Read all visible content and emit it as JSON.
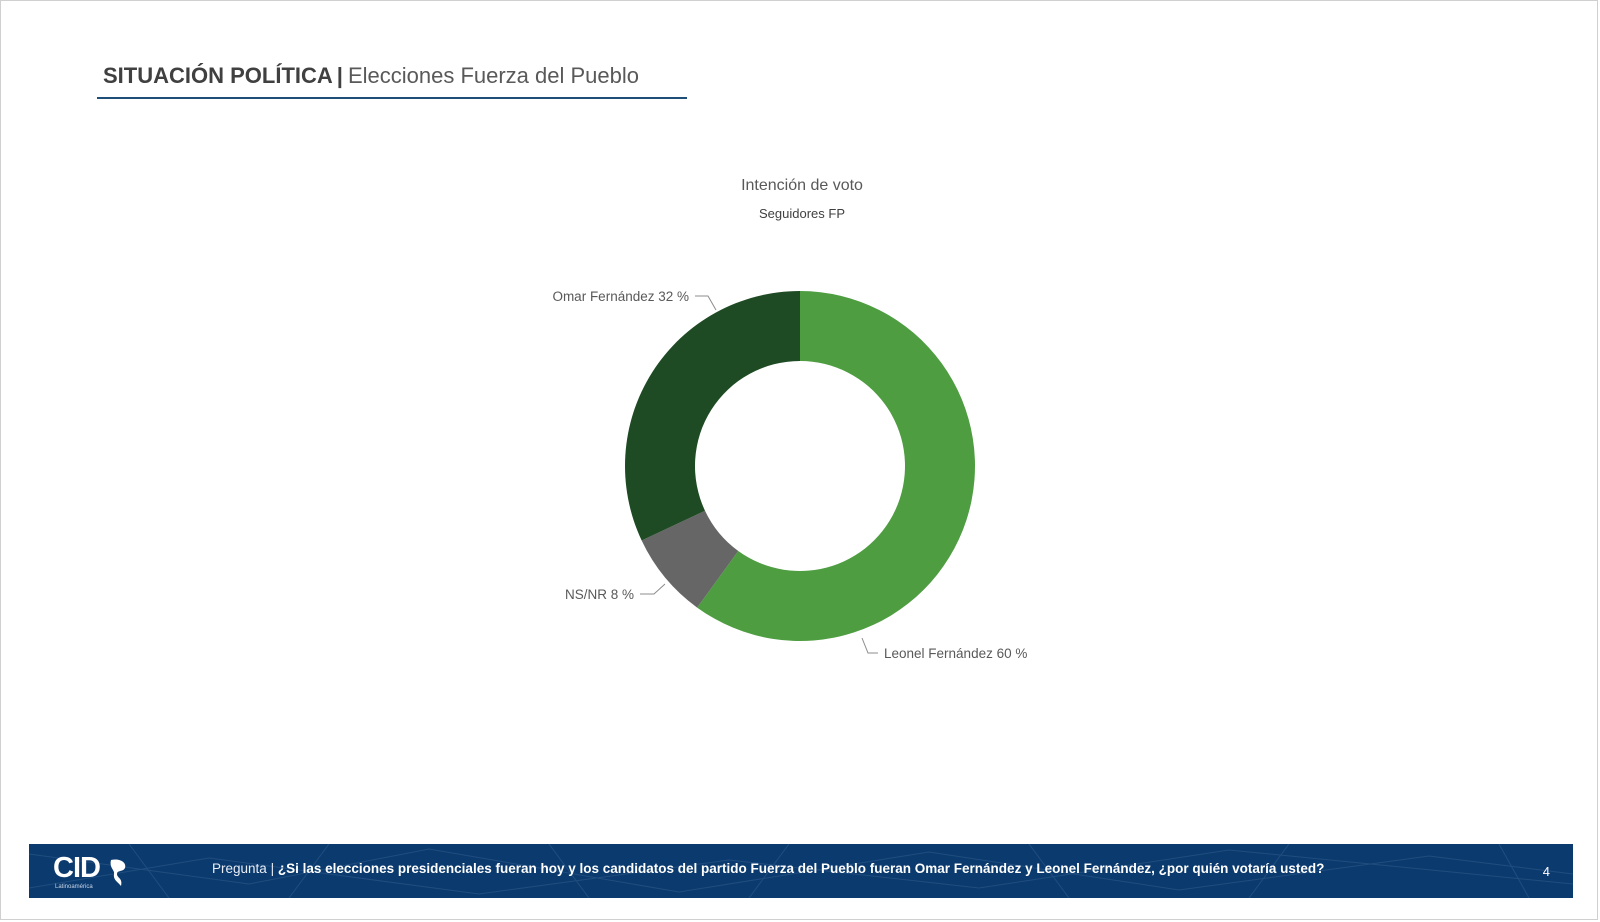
{
  "header": {
    "title_bold": "SITUACIÓN POLÍTICA",
    "separator": "|",
    "title_light": "Elecciones Fuerza del Pueblo"
  },
  "chart_data": {
    "type": "pie",
    "title": "Intención de voto",
    "subtitle": "Seguidores FP",
    "donut": true,
    "slices": [
      {
        "name": "Leonel Fernández",
        "value": 60,
        "label": "Leonel Fernández 60 %",
        "color": "#4e9d41"
      },
      {
        "name": "NS/NR",
        "value": 8,
        "label": "NS/NR 8 %",
        "color": "#666666"
      },
      {
        "name": "Omar Fernández",
        "value": 32,
        "label": "Omar Fernández 32 %",
        "color": "#1e4b23"
      }
    ]
  },
  "footer": {
    "logo_text": "CID",
    "logo_sub": "Latinoamérica",
    "question_label": "Pregunta",
    "question_sep": "|",
    "question_text": "¿Si las elecciones presidenciales fueran hoy y los candidatos del partido Fuerza del Pueblo fueran Omar Fernández y Leonel Fernández, ¿por quién votaría usted?",
    "page_number": "4",
    "background_color": "#0b3a6e"
  }
}
